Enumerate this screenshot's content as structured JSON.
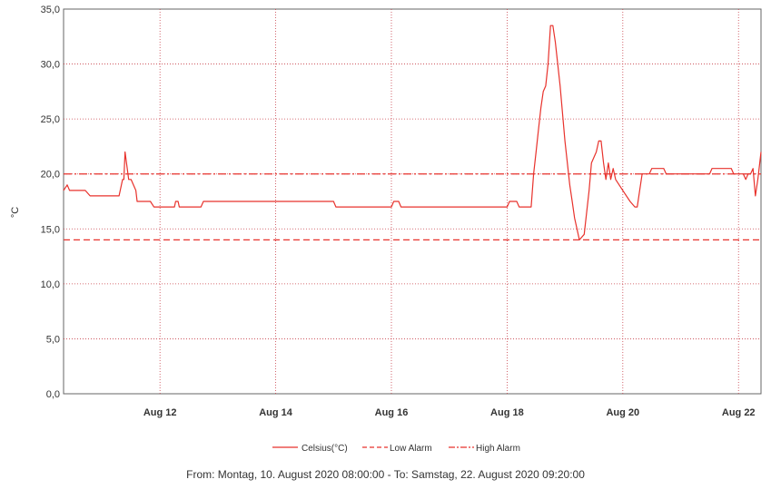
{
  "chart_data": {
    "type": "line",
    "title": "",
    "xlabel": "",
    "ylabel": "°C",
    "ylim": [
      0,
      35
    ],
    "xlim": [
      "2020-08-10 08:00",
      "2020-08-22 09:20"
    ],
    "y_ticks": [
      "0,0",
      "5,0",
      "10,0",
      "15,0",
      "20,0",
      "25,0",
      "30,0",
      "35,0"
    ],
    "x_ticks": [
      {
        "label": "Aug 12",
        "date": "2020-08-12 00:00"
      },
      {
        "label": "Aug 14",
        "date": "2020-08-14 00:00"
      },
      {
        "label": "Aug 16",
        "date": "2020-08-16 00:00"
      },
      {
        "label": "Aug 18",
        "date": "2020-08-18 00:00"
      },
      {
        "label": "Aug 20",
        "date": "2020-08-20 00:00"
      },
      {
        "label": "Aug 22",
        "date": "2020-08-22 00:00"
      }
    ],
    "grid": true,
    "legend_position": "bottom",
    "series": [
      {
        "name": "Celsius(°C)",
        "style": "solid",
        "color": "#e8322c",
        "x": [
          "2020-08-10 08:00",
          "2020-08-10 09:30",
          "2020-08-10 10:30",
          "2020-08-10 11:30",
          "2020-08-10 13:00",
          "2020-08-10 15:00",
          "2020-08-10 17:00",
          "2020-08-10 19:00",
          "2020-08-11 00:00",
          "2020-08-11 03:00",
          "2020-08-11 05:00",
          "2020-08-11 07:00",
          "2020-08-11 08:00",
          "2020-08-11 08:30",
          "2020-08-11 09:00",
          "2020-08-11 09:30",
          "2020-08-11 11:00",
          "2020-08-11 12:00",
          "2020-08-11 14:00",
          "2020-08-11 14:30",
          "2020-08-11 15:00",
          "2020-08-11 18:00",
          "2020-08-11 20:00",
          "2020-08-11 21:30",
          "2020-08-11 22:00",
          "2020-08-12 06:00",
          "2020-08-12 06:30",
          "2020-08-12 07:30",
          "2020-08-12 08:00",
          "2020-08-12 10:00",
          "2020-08-12 11:00",
          "2020-08-12 17:00",
          "2020-08-12 18:00",
          "2020-08-14 16:00",
          "2020-08-14 17:00",
          "2020-08-15 00:00",
          "2020-08-15 01:00",
          "2020-08-15 12:00",
          "2020-08-16 00:00",
          "2020-08-16 01:00",
          "2020-08-16 03:00",
          "2020-08-16 04:00",
          "2020-08-17 00:00",
          "2020-08-18 00:00",
          "2020-08-18 01:00",
          "2020-08-18 04:00",
          "2020-08-18 05:00",
          "2020-08-18 10:00",
          "2020-08-18 11:00",
          "2020-08-18 12:00",
          "2020-08-18 13:00",
          "2020-08-18 14:00",
          "2020-08-18 15:00",
          "2020-08-18 16:00",
          "2020-08-18 17:00",
          "2020-08-18 18:00",
          "2020-08-18 19:00",
          "2020-08-18 20:00",
          "2020-08-18 22:00",
          "2020-08-19 00:00",
          "2020-08-19 02:00",
          "2020-08-19 03:00",
          "2020-08-19 04:00",
          "2020-08-19 06:00",
          "2020-08-19 08:00",
          "2020-08-19 09:00",
          "2020-08-19 10:00",
          "2020-08-19 11:00",
          "2020-08-19 13:00",
          "2020-08-19 14:00",
          "2020-08-19 15:00",
          "2020-08-19 16:00",
          "2020-08-19 17:00",
          "2020-08-19 18:00",
          "2020-08-19 19:00",
          "2020-08-19 20:00",
          "2020-08-19 21:00",
          "2020-08-20 00:00",
          "2020-08-20 03:00",
          "2020-08-20 05:00",
          "2020-08-20 06:00",
          "2020-08-20 08:00",
          "2020-08-20 11:00",
          "2020-08-20 12:00",
          "2020-08-20 14:00",
          "2020-08-20 17:00",
          "2020-08-20 18:00",
          "2020-08-21 00:00",
          "2020-08-21 01:00",
          "2020-08-21 12:00",
          "2020-08-21 13:00",
          "2020-08-21 21:00",
          "2020-08-21 22:00",
          "2020-08-22 00:00",
          "2020-08-22 02:00",
          "2020-08-22 03:00",
          "2020-08-22 04:00",
          "2020-08-22 05:00",
          "2020-08-22 06:00",
          "2020-08-22 07:00",
          "2020-08-22 08:00",
          "2020-08-22 09:20"
        ],
        "y": [
          18.5,
          19.0,
          18.5,
          18.5,
          18.5,
          18.5,
          18.5,
          18.0,
          18.0,
          18.0,
          18.0,
          18.0,
          19.0,
          19.5,
          19.5,
          22.0,
          19.5,
          19.5,
          18.5,
          17.5,
          17.5,
          17.5,
          17.5,
          17.0,
          17.0,
          17.0,
          17.5,
          17.5,
          17.0,
          17.0,
          17.0,
          17.0,
          17.5,
          17.5,
          17.5,
          17.5,
          17.0,
          17.0,
          17.0,
          17.5,
          17.5,
          17.0,
          17.0,
          17.0,
          17.5,
          17.5,
          17.0,
          17.0,
          20.0,
          22.0,
          24.0,
          26.0,
          27.5,
          28.0,
          30.0,
          33.5,
          33.5,
          32.0,
          28.0,
          23.0,
          19.0,
          17.5,
          16.0,
          14.0,
          14.5,
          16.5,
          18.5,
          21.0,
          22.0,
          23.0,
          23.0,
          21.0,
          19.5,
          21.0,
          19.5,
          20.5,
          19.5,
          18.5,
          17.5,
          17.0,
          17.0,
          20.0,
          20.0,
          20.5,
          20.5,
          20.5,
          20.0,
          20.0,
          20.0,
          20.0,
          20.5,
          20.5,
          20.0,
          20.0,
          20.0,
          19.5,
          20.0,
          20.0,
          20.5,
          18.0,
          19.5,
          22.0
        ]
      },
      {
        "name": "Low Alarm",
        "style": "dashed",
        "color": "#e8322c",
        "constant": 14.0
      },
      {
        "name": "High Alarm",
        "style": "dashdot",
        "color": "#e8322c",
        "constant": 20.0
      }
    ],
    "footer": "From: Montag, 10. August 2020 08:00:00  -  To: Samstag, 22. August 2020 09:20:00"
  },
  "colors": {
    "grid": "#c8404a",
    "axis": "#666666",
    "series": "#e8322c"
  }
}
